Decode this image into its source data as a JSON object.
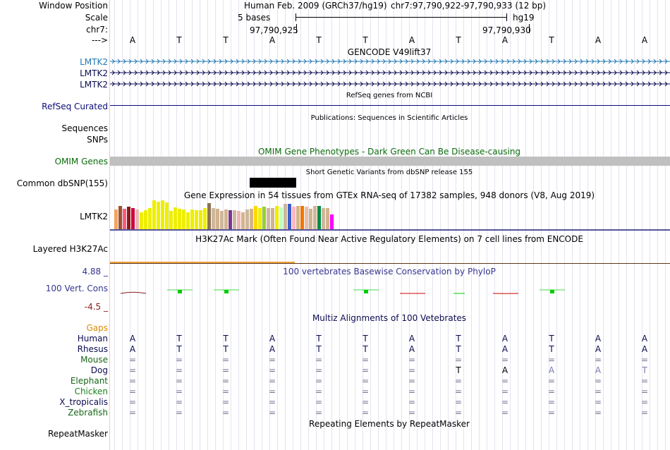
{
  "colors": {
    "gencode_blue": "#1f77b4",
    "gene_dark": "#0b0b50",
    "refseq_navy": "#0c0c78",
    "omim_green": "#0b6b0b",
    "omim_bar": "#c0c0c0",
    "gtex_underline": "#1f1f7a",
    "h3k27_orange": "#f0a040",
    "cons_blue": "#353591",
    "cons_neg_red": "#8b1a1a",
    "gaps_orange": "#e08a00",
    "primate_navy": "#0b0b50",
    "other_green": "#176517",
    "chicken_green": "#1e801e",
    "aln_gray": "#707090",
    "grid_line": "#e3e3f2",
    "left_border": "#f0c8c8"
  },
  "header": {
    "window_position_label": "Window Position",
    "scale_label": "Scale",
    "chrom_label": "chr7:",
    "strand_label": "--->",
    "assembly": "Human Feb. 2009 (GRCh37/hg19)",
    "position": "chr7:97,790,922-97,790,933 (12 bp)",
    "scale_text": "5 bases",
    "db": "hg19",
    "coord_1": "97,790,925",
    "coord_2": "97,790,930"
  },
  "sequence": [
    "A",
    "T",
    "T",
    "A",
    "T",
    "T",
    "A",
    "T",
    "A",
    "T",
    "A",
    "A"
  ],
  "tracks": {
    "gencode_title": "GENCODE V49lift37",
    "gencode_genes": [
      "LMTK2",
      "LMTK2",
      "LMTK2"
    ],
    "refseq_title": "RefSeq genes from NCBI",
    "refseq_label": "RefSeq Curated",
    "publications_title": "Publications: Sequences in Scientific Articles",
    "sequences_label": "Sequences",
    "snps_label": "SNPs",
    "omim_title": "OMIM Gene Phenotypes - Dark Green Can Be Disease-causing",
    "omim_label": "OMIM Genes",
    "dbsnp_title": "Short Genetic Variants from dbSNP release 155",
    "dbsnp_label": "Common dbSNP(155)",
    "gtex_title": "Gene Expression in 54 tissues from GTEx RNA-seq of 17382 samples, 948 donors (V8, Aug 2019)",
    "gtex_label": "LMTK2",
    "h3k27_title": "H3K27Ac Mark (Often Found Near Active Regulatory Elements) on 7 cell lines from ENCODE",
    "h3k27_label": "Layered H3K27Ac",
    "cons_title": "100 vertebrates Basewise Conservation by PhyloP",
    "cons_label": "100 Vert. Cons",
    "cons_max": "4.88 _",
    "cons_min": "-4.5 _",
    "multiz_title": "Multiz Alignments of 100 Vetebrates",
    "gaps_label": "Gaps",
    "repeat_title": "Repeating Elements by RepeatMasker",
    "repeat_label": "RepeatMasker"
  },
  "gtex_bars": [
    {
      "h": 28,
      "c": "#f5a25f"
    },
    {
      "h": 33,
      "c": "#a0522d"
    },
    {
      "h": 29,
      "c": "#ff5a7a"
    },
    {
      "h": 32,
      "c": "#8b1a1a"
    },
    {
      "h": 30,
      "c": "#cc0044"
    },
    {
      "h": 28,
      "c": "#e8b8b0"
    },
    {
      "h": 24,
      "c": "#eeee00"
    },
    {
      "h": 27,
      "c": "#eeee00"
    },
    {
      "h": 30,
      "c": "#eeee00"
    },
    {
      "h": 41,
      "c": "#eeee00"
    },
    {
      "h": 39,
      "c": "#eeee00"
    },
    {
      "h": 41,
      "c": "#eeee00"
    },
    {
      "h": 38,
      "c": "#eeee00"
    },
    {
      "h": 26,
      "c": "#eeee00"
    },
    {
      "h": 31,
      "c": "#eeee00"
    },
    {
      "h": 29,
      "c": "#eeee00"
    },
    {
      "h": 28,
      "c": "#eeee00"
    },
    {
      "h": 24,
      "c": "#eeee00"
    },
    {
      "h": 28,
      "c": "#eeee00"
    },
    {
      "h": 27,
      "c": "#eeee00"
    },
    {
      "h": 27,
      "c": "#eeee00"
    },
    {
      "h": 30,
      "c": "#eeee00"
    },
    {
      "h": 37,
      "c": "#8b7355"
    },
    {
      "h": 30,
      "c": "#cdb79e"
    },
    {
      "h": 29,
      "c": "#d2b48c"
    },
    {
      "h": 26,
      "c": "#cdb79e"
    },
    {
      "h": 28,
      "c": "#d2b48c"
    },
    {
      "h": 27,
      "c": "#7a378b"
    },
    {
      "h": 27,
      "c": "#cdb79e"
    },
    {
      "h": 26,
      "c": "#eeb4b4"
    },
    {
      "h": 24,
      "c": "#d2b48c"
    },
    {
      "h": 28,
      "c": "#cdb79e"
    },
    {
      "h": 29,
      "c": "#d2b48c"
    },
    {
      "h": 33,
      "c": "#ffd700"
    },
    {
      "h": 30,
      "c": "#eeee00"
    },
    {
      "h": 32,
      "c": "#9acd32"
    },
    {
      "h": 30,
      "c": "#cdb79e"
    },
    {
      "h": 30,
      "c": "#d2b48c"
    },
    {
      "h": 33,
      "c": "#eeee00"
    },
    {
      "h": 31,
      "c": "#c1ffc1"
    },
    {
      "h": 36,
      "c": "#cdb79e"
    },
    {
      "h": 36,
      "c": "#3a5fcd"
    },
    {
      "h": 32,
      "c": "#ffb6c1"
    },
    {
      "h": 33,
      "c": "#d2b48c"
    },
    {
      "h": 33,
      "c": "#ee7600"
    },
    {
      "h": 32,
      "c": "#e8c0a8"
    },
    {
      "h": 29,
      "c": "#d2b48c"
    },
    {
      "h": 33,
      "c": "#cdb79e"
    },
    {
      "h": 33,
      "c": "#008b45"
    },
    {
      "h": 30,
      "c": "#cdb79e"
    },
    {
      "h": 30,
      "c": "#d2b48c"
    },
    {
      "h": 21,
      "c": "#ff00ff"
    }
  ],
  "cons_marks": [
    {
      "base": 0,
      "v": -0.1,
      "c": "#8b1a1a"
    },
    {
      "base": 1,
      "v": 1.4,
      "c": "#00cc00"
    },
    {
      "base": 2,
      "v": 1.6,
      "c": "#00cc00"
    },
    {
      "base": 5,
      "v": 0.9,
      "c": "#00cc00"
    },
    {
      "base": 6,
      "v": -1.0,
      "c": "#cc0000"
    },
    {
      "base": 7,
      "v": 0.3,
      "c": "#00cc00"
    },
    {
      "base": 8,
      "v": -1.1,
      "c": "#cc0000"
    },
    {
      "base": 9,
      "v": 0.6,
      "c": "#00cc00"
    }
  ],
  "alignments": [
    {
      "species": "Human",
      "color": "#0b0b50",
      "bases": [
        "A",
        "T",
        "T",
        "A",
        "T",
        "T",
        "A",
        "T",
        "A",
        "T",
        "A",
        "A"
      ]
    },
    {
      "species": "Rhesus",
      "color": "#0b0b50",
      "bases": [
        "A",
        "T",
        "T",
        "A",
        "T",
        "T",
        "A",
        "T",
        "A",
        "T",
        "A",
        "A"
      ]
    },
    {
      "species": "Mouse",
      "color": "#176517",
      "bases": [
        "=",
        "=",
        "=",
        "=",
        "=",
        "=",
        "=",
        "=",
        "=",
        "=",
        "=",
        "="
      ]
    },
    {
      "species": "Dog",
      "color": "#0b0b50",
      "bases": [
        "=",
        "=",
        "=",
        "=",
        "=",
        "=",
        "=",
        "T",
        "A",
        "A",
        "A",
        "T"
      ]
    },
    {
      "species": "Elephant",
      "color": "#176517",
      "bases": [
        "=",
        "=",
        "=",
        "=",
        "=",
        "=",
        "=",
        "=",
        "=",
        "=",
        "=",
        "="
      ]
    },
    {
      "species": "Chicken",
      "color": "#1e801e",
      "bases": [
        "=",
        "=",
        "=",
        "=",
        "=",
        "=",
        "=",
        "=",
        "=",
        "=",
        "=",
        "="
      ]
    },
    {
      "species": "X_tropicalis",
      "color": "#0b0b50",
      "bases": [
        "=",
        "=",
        "=",
        "=",
        "=",
        "=",
        "=",
        "=",
        "=",
        "=",
        "=",
        "="
      ]
    },
    {
      "species": "Zebrafish",
      "color": "#176517",
      "bases": [
        "=",
        "=",
        "=",
        "=",
        "=",
        "=",
        "=",
        "=",
        "=",
        "=",
        "=",
        "="
      ]
    }
  ]
}
